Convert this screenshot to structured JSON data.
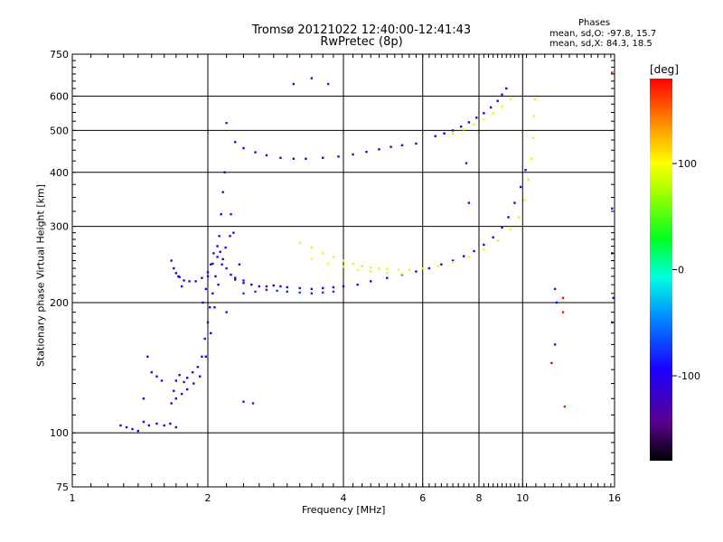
{
  "chart_data": {
    "type": "scatter",
    "title": "Tromsø 20121022 12:40:00-12:41:43",
    "subtitle": "RwPretec (8p)",
    "xlabel": "Frequency [MHz]",
    "ylabel": "Stationary phase Virtual Height [km]",
    "x_scale": "log",
    "y_scale": "log",
    "xlim": [
      1,
      16
    ],
    "ylim": [
      75,
      750
    ],
    "x_ticks": [
      1,
      2,
      4,
      6,
      8,
      10,
      16
    ],
    "y_ticks": [
      75,
      100,
      200,
      300,
      400,
      500,
      600,
      750
    ],
    "grid": true,
    "stats": {
      "header": "Phases",
      "line_o": "mean, sd,O: -97.8, 15.7",
      "line_x": "mean, sd,X:  84.3, 18.5"
    },
    "colorbar": {
      "label": "[deg]",
      "min": -180,
      "max": 180,
      "ticks": [
        100,
        0,
        -100
      ]
    },
    "traces": [
      {
        "kind": "o",
        "phase": -105,
        "points": [
          [
            1.28,
            104
          ],
          [
            1.32,
            103
          ],
          [
            1.36,
            102
          ],
          [
            1.4,
            101
          ],
          [
            1.44,
            106
          ],
          [
            1.48,
            104
          ],
          [
            1.54,
            105
          ],
          [
            1.6,
            104
          ],
          [
            1.65,
            105
          ],
          [
            1.7,
            103
          ],
          [
            1.44,
            120
          ],
          [
            1.47,
            150
          ],
          [
            1.5,
            138
          ],
          [
            1.54,
            135
          ],
          [
            1.58,
            132
          ]
        ]
      },
      {
        "kind": "o",
        "phase": -115,
        "points": [
          [
            1.66,
            117
          ],
          [
            1.68,
            125
          ],
          [
            1.7,
            132
          ],
          [
            1.73,
            136
          ],
          [
            1.77,
            131
          ],
          [
            1.8,
            134
          ],
          [
            1.85,
            138
          ],
          [
            1.9,
            142
          ],
          [
            1.94,
            150
          ],
          [
            1.97,
            165
          ],
          [
            2.0,
            180
          ],
          [
            2.02,
            195
          ],
          [
            2.05,
            210
          ],
          [
            2.08,
            230
          ],
          [
            2.1,
            255
          ],
          [
            2.12,
            285
          ],
          [
            2.14,
            320
          ],
          [
            2.16,
            360
          ],
          [
            2.18,
            400
          ]
        ]
      },
      {
        "kind": "o",
        "phase": -110,
        "points": [
          [
            1.7,
            120
          ],
          [
            1.75,
            123
          ],
          [
            1.8,
            126
          ],
          [
            1.86,
            130
          ],
          [
            1.92,
            135
          ],
          [
            1.98,
            150
          ],
          [
            2.03,
            170
          ],
          [
            2.07,
            195
          ],
          [
            2.11,
            220
          ],
          [
            2.15,
            245
          ],
          [
            2.19,
            268
          ],
          [
            2.24,
            285
          ],
          [
            2.28,
            290
          ]
        ]
      },
      {
        "kind": "o",
        "phase": -100,
        "points": [
          [
            1.95,
            200
          ],
          [
            1.98,
            215
          ],
          [
            2.0,
            230
          ],
          [
            2.03,
            245
          ],
          [
            2.06,
            260
          ],
          [
            2.1,
            270
          ],
          [
            2.13,
            262
          ],
          [
            2.16,
            252
          ],
          [
            2.2,
            240
          ],
          [
            2.25,
            232
          ],
          [
            2.3,
            226
          ]
        ]
      },
      {
        "kind": "o",
        "phase": -115,
        "points": [
          [
            1.66,
            250
          ],
          [
            1.68,
            240
          ],
          [
            1.7,
            234
          ],
          [
            1.73,
            229
          ],
          [
            1.77,
            225
          ],
          [
            1.82,
            224
          ],
          [
            1.88,
            224
          ],
          [
            1.94,
            228
          ],
          [
            2.0,
            235
          ],
          [
            2.05,
            246
          ],
          [
            1.72,
            230
          ],
          [
            1.75,
            218
          ]
        ]
      },
      {
        "kind": "o",
        "phase": -105,
        "points": [
          [
            2.3,
            228
          ],
          [
            2.4,
            222
          ],
          [
            2.5,
            220
          ],
          [
            2.6,
            218
          ],
          [
            2.7,
            218
          ],
          [
            2.8,
            219
          ],
          [
            2.9,
            218
          ],
          [
            3.0,
            217
          ],
          [
            3.2,
            216
          ],
          [
            3.4,
            215
          ],
          [
            3.6,
            216
          ],
          [
            3.8,
            217
          ],
          [
            4.0,
            218
          ],
          [
            4.3,
            220
          ],
          [
            4.6,
            224
          ],
          [
            5.0,
            228
          ],
          [
            5.4,
            232
          ],
          [
            5.8,
            236
          ],
          [
            6.2,
            240
          ],
          [
            6.6,
            245
          ],
          [
            7.0,
            250
          ],
          [
            7.4,
            256
          ],
          [
            7.8,
            263
          ],
          [
            8.2,
            272
          ],
          [
            8.6,
            283
          ],
          [
            9.0,
            298
          ],
          [
            9.3,
            315
          ],
          [
            9.6,
            340
          ],
          [
            9.9,
            370
          ],
          [
            10.15,
            405
          ]
        ]
      },
      {
        "kind": "o",
        "phase": -85,
        "points": [
          [
            2.4,
            210
          ],
          [
            2.55,
            212
          ],
          [
            2.7,
            214
          ],
          [
            2.85,
            213
          ],
          [
            3.0,
            212
          ],
          [
            3.2,
            211
          ],
          [
            3.4,
            210
          ],
          [
            3.6,
            211
          ],
          [
            3.8,
            212
          ]
        ]
      },
      {
        "kind": "x",
        "phase": 85,
        "points": [
          [
            3.2,
            275
          ],
          [
            3.4,
            268
          ],
          [
            3.6,
            260
          ],
          [
            3.8,
            255
          ],
          [
            4.0,
            250
          ],
          [
            4.2,
            246
          ],
          [
            4.4,
            243
          ],
          [
            4.6,
            241
          ],
          [
            4.8,
            240
          ],
          [
            5.0,
            239
          ],
          [
            5.3,
            238
          ],
          [
            5.6,
            238
          ],
          [
            6.0,
            240
          ],
          [
            6.5,
            243
          ],
          [
            7.0,
            248
          ],
          [
            7.6,
            255
          ],
          [
            8.2,
            265
          ],
          [
            8.8,
            278
          ],
          [
            9.4,
            295
          ],
          [
            9.8,
            315
          ],
          [
            10.1,
            345
          ],
          [
            10.3,
            385
          ],
          [
            10.45,
            430
          ],
          [
            10.55,
            480
          ],
          [
            10.6,
            540
          ],
          [
            10.65,
            590
          ]
        ]
      },
      {
        "kind": "x",
        "phase": 95,
        "points": [
          [
            3.4,
            252
          ],
          [
            3.7,
            246
          ],
          [
            4.0,
            242
          ],
          [
            4.3,
            238
          ],
          [
            4.6,
            236
          ],
          [
            5.0,
            234
          ],
          [
            5.4,
            233
          ]
        ]
      },
      {
        "kind": "o",
        "phase": -110,
        "points": [
          [
            2.3,
            470
          ],
          [
            2.4,
            455
          ],
          [
            2.55,
            445
          ],
          [
            2.7,
            438
          ],
          [
            2.9,
            432
          ],
          [
            3.1,
            430
          ],
          [
            3.3,
            430
          ],
          [
            3.6,
            432
          ],
          [
            3.9,
            435
          ],
          [
            4.2,
            440
          ],
          [
            4.5,
            446
          ],
          [
            4.8,
            452
          ],
          [
            5.1,
            458
          ],
          [
            5.4,
            462
          ],
          [
            5.8,
            466
          ]
        ]
      },
      {
        "kind": "o",
        "phase": -110,
        "points": [
          [
            6.4,
            485
          ],
          [
            6.7,
            492
          ],
          [
            7.0,
            500
          ],
          [
            7.3,
            510
          ],
          [
            7.6,
            522
          ],
          [
            7.9,
            535
          ],
          [
            8.2,
            548
          ],
          [
            8.5,
            565
          ],
          [
            8.8,
            585
          ],
          [
            9.0,
            605
          ],
          [
            9.2,
            625
          ]
        ]
      },
      {
        "kind": "x",
        "phase": 90,
        "points": [
          [
            7.0,
            492
          ],
          [
            7.4,
            503
          ],
          [
            7.8,
            516
          ],
          [
            8.2,
            530
          ],
          [
            8.6,
            548
          ],
          [
            9.0,
            568
          ],
          [
            9.4,
            590
          ]
        ]
      },
      {
        "kind": "x",
        "phase": 175,
        "points": [
          [
            12.3,
            205
          ],
          [
            12.3,
            190
          ],
          [
            11.6,
            145
          ],
          [
            12.4,
            115
          ],
          [
            15.8,
            680
          ]
        ]
      },
      {
        "kind": "o",
        "phase": -95,
        "points": [
          [
            2.25,
            320
          ],
          [
            2.35,
            245
          ],
          [
            2.4,
            225
          ],
          [
            3.4,
            660
          ],
          [
            3.7,
            640
          ],
          [
            3.1,
            640
          ],
          [
            2.2,
            520
          ],
          [
            7.5,
            420
          ],
          [
            7.6,
            340
          ],
          [
            11.8,
            215
          ],
          [
            11.9,
            200
          ],
          [
            11.8,
            160
          ],
          [
            15.8,
            330
          ],
          [
            15.8,
            260
          ],
          [
            15.9,
            205
          ],
          [
            15.8,
            180
          ],
          [
            2.4,
            118
          ],
          [
            2.52,
            117
          ],
          [
            2.2,
            190
          ]
        ]
      }
    ]
  }
}
